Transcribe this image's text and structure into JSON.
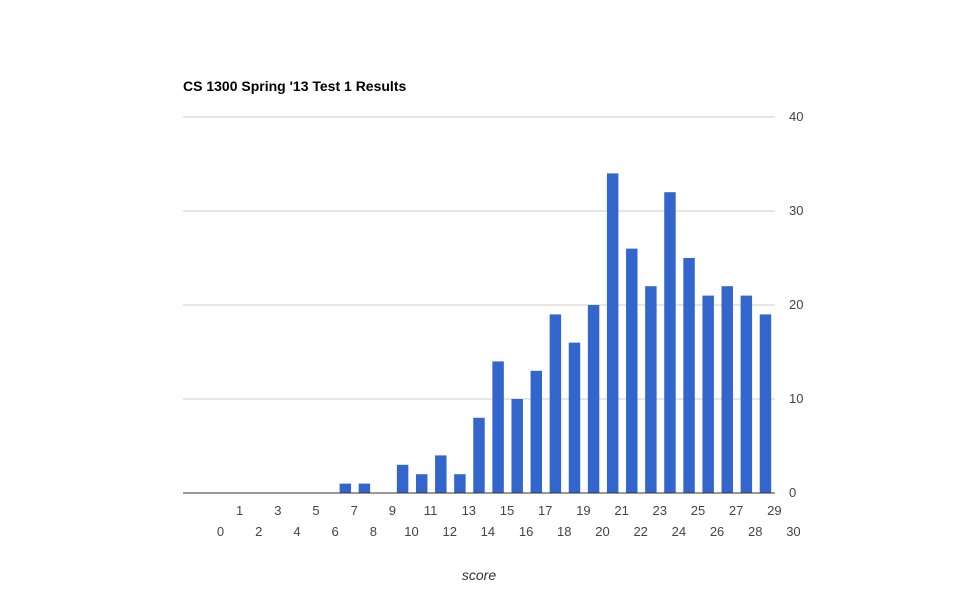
{
  "chart_data": {
    "type": "bar",
    "title": "CS 1300 Spring '13 Test 1 Results",
    "xlabel": "score",
    "ylabel": "",
    "ylim": [
      0,
      40
    ],
    "yticks": [
      0,
      10,
      20,
      30,
      40
    ],
    "grid": true,
    "legend": "none",
    "bar_color": "#3366cc",
    "categories": [
      "0",
      "1",
      "2",
      "3",
      "4",
      "5",
      "6",
      "7",
      "8",
      "9",
      "10",
      "11",
      "12",
      "13",
      "14",
      "15",
      "16",
      "17",
      "18",
      "19",
      "20",
      "21",
      "22",
      "23",
      "24",
      "25",
      "26",
      "27",
      "28",
      "29",
      "30"
    ],
    "values": [
      0,
      0,
      0,
      0,
      0,
      0,
      0,
      0,
      1,
      1,
      0,
      3,
      2,
      4,
      2,
      8,
      14,
      10,
      13,
      19,
      16,
      20,
      34,
      26,
      22,
      32,
      25,
      21,
      22,
      21,
      19
    ]
  }
}
